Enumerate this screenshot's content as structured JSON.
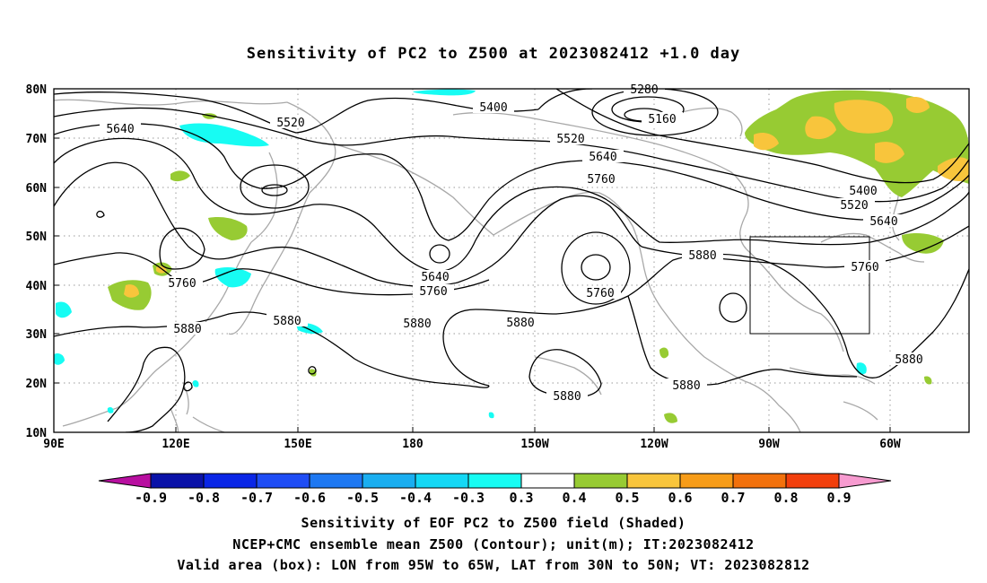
{
  "title": "Sensitivity of PC2 to Z500 at 2023082412 +1.0 day",
  "lat_labels": [
    "80N",
    "70N",
    "60N",
    "50N",
    "40N",
    "30N",
    "20N",
    "10N"
  ],
  "lon_labels": [
    "90E",
    "120E",
    "150E",
    "180",
    "150W",
    "120W",
    "90W",
    "60W"
  ],
  "contour_labels": [
    "5280",
    "5160",
    "5400",
    "5520",
    "5640",
    "5520",
    "5640",
    "5760",
    "5400",
    "5520",
    "5640",
    "5760",
    "5640",
    "5760",
    "5760",
    "5880",
    "5880",
    "5880",
    "5880",
    "5760",
    "5880",
    "5880",
    "5880",
    "5880"
  ],
  "colorbar": {
    "labels": [
      "-0.9",
      "-0.8",
      "-0.7",
      "-0.6",
      "-0.5",
      "-0.4",
      "-0.3",
      "0.3",
      "0.4",
      "0.5",
      "0.6",
      "0.7",
      "0.8",
      "0.9"
    ],
    "colors": [
      "#b80fa0",
      "#0a12a8",
      "#0a26e6",
      "#1f4df5",
      "#1e78f2",
      "#1aaef0",
      "#14d8f5",
      "#17fcf3",
      "#ffffff",
      "#97cb33",
      "#f8c53c",
      "#f79c18",
      "#f2710c",
      "#f23f0c",
      "#f0110c",
      "#f79bd0"
    ]
  },
  "footer": {
    "line1": "Sensitivity of EOF PC2 to Z500 field (Shaded)",
    "line2": "NCEP+CMC ensemble mean Z500 (Contour); unit(m); IT:2023082412",
    "line3": "Valid area (box): LON from 95W to 65W, LAT from 30N to 50N; VT: 2023082812"
  }
}
